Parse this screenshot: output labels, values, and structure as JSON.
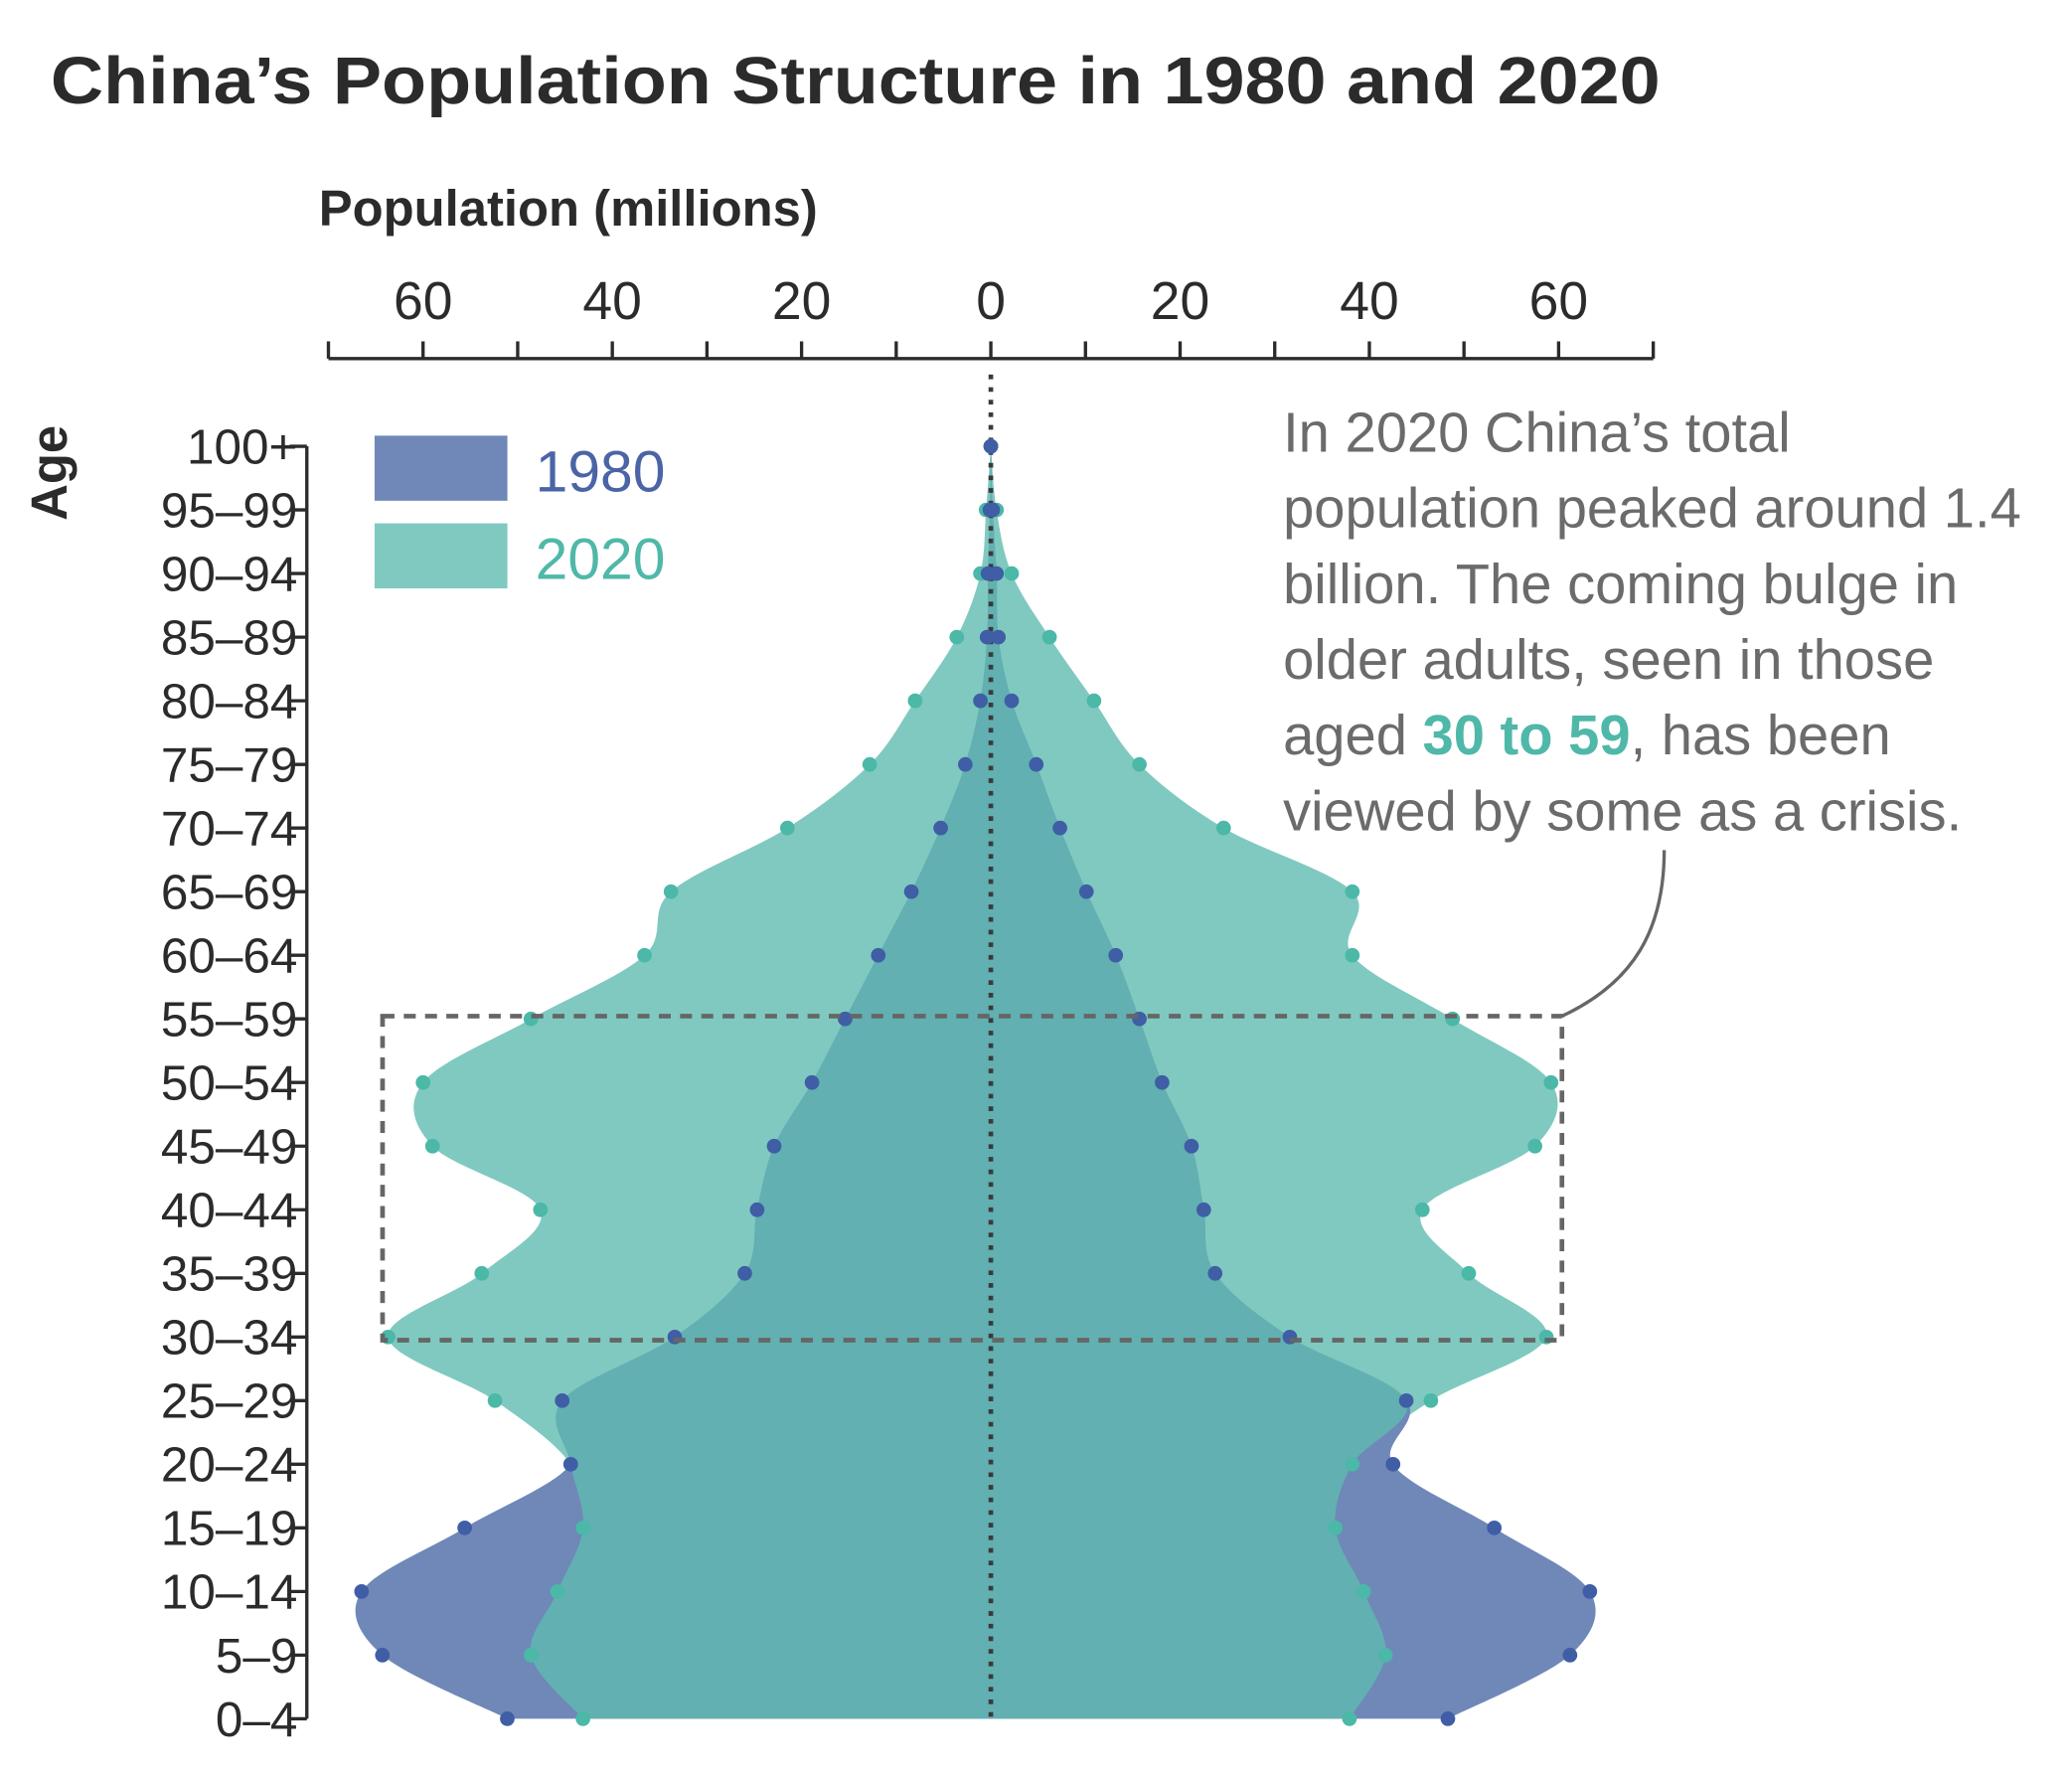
{
  "chart_data": {
    "type": "area",
    "title": "China’s Population Structure in 1980 and 2020",
    "xlabel": "Population (millions)",
    "ylabel": "Age",
    "xlim": [
      -70,
      70
    ],
    "x_tick_labels": [
      "60",
      "40",
      "20",
      "0",
      "20",
      "40",
      "60"
    ],
    "x_ticks": [
      -60,
      -40,
      -20,
      0,
      20,
      40,
      60
    ],
    "grid": false,
    "legend_placement": "top-left",
    "categories": [
      "100+",
      "95–99",
      "90–94",
      "85–89",
      "80–84",
      "75–79",
      "70–74",
      "65–69",
      "60–64",
      "55–59",
      "50–54",
      "45–49",
      "40–44",
      "35–39",
      "30–34",
      "25–29",
      "20–24",
      "15–19",
      "10–14",
      "5–9",
      "0–4"
    ],
    "series": [
      {
        "name": "1980",
        "color": "#6f88b8",
        "dot_color": "#3f5ea5",
        "left": [
          0,
          0.1,
          0.3,
          0.4,
          1.1,
          2.7,
          5.3,
          8.4,
          11.9,
          15.4,
          18.9,
          22.9,
          24.7,
          26.0,
          33.4,
          45.3,
          44.4,
          55.6,
          66.5,
          64.3,
          51.1
        ],
        "right": [
          0,
          0.2,
          0.6,
          0.8,
          2.2,
          4.8,
          7.3,
          10.1,
          13.2,
          15.7,
          18.1,
          21.2,
          22.5,
          23.7,
          31.6,
          43.9,
          42.5,
          53.2,
          63.3,
          61.2,
          48.3
        ]
      },
      {
        "name": "2020",
        "color": "#80c9c0",
        "dot_color": "#4bb8a8",
        "left": [
          0,
          0.5,
          1.1,
          3.6,
          8.0,
          12.8,
          21.5,
          33.8,
          36.6,
          48.6,
          60.0,
          59.0,
          47.6,
          53.8,
          63.7,
          52.4,
          44.4,
          43.1,
          45.8,
          48.6,
          43.1
        ],
        "right": [
          0,
          0.6,
          2.2,
          6.2,
          10.9,
          15.7,
          24.6,
          38.2,
          38.2,
          48.8,
          59.2,
          57.5,
          45.6,
          50.5,
          58.7,
          46.5,
          38.2,
          36.4,
          39.4,
          41.7,
          37.9
        ]
      }
    ],
    "overlap_color": "#62b0b1",
    "highlight_range": [
      "30–34",
      "55–59"
    ],
    "annotation": {
      "lines": [
        "In 2020 China’s total",
        "population peaked around 1.4",
        "billion. The coming bulge in",
        "older adults, seen in those"
      ],
      "line5_pre": "aged ",
      "line5_hl": "30 to 59",
      "line5_post": ", has been",
      "line6": "viewed by some as a crisis."
    }
  }
}
